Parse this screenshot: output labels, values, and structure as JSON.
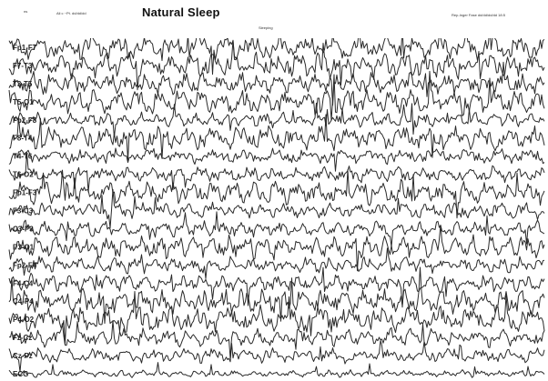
{
  "header": {
    "corner_label": "ns",
    "patient_info": "Ali c ~Pt. dd/dd/dd",
    "title": "Natural Sleep",
    "subtitle": "Sleeping",
    "record_info": "Rep-Inger Fase dd/dd/dd/dd 18:5"
  },
  "channels": [
    {
      "label": "Fp1-F7",
      "seed": 11
    },
    {
      "label": "F7-T3",
      "seed": 23
    },
    {
      "label": "T3-T5",
      "seed": 37
    },
    {
      "label": "T5-O1",
      "seed": 41
    },
    {
      "label": "Fp2-F8",
      "seed": 53
    },
    {
      "label": "F8-T4",
      "seed": 67
    },
    {
      "label": "T4-T6",
      "seed": 71
    },
    {
      "label": "T6-O2",
      "seed": 83
    },
    {
      "label": "Fp1-F3",
      "seed": 97
    },
    {
      "label": "F3-C3",
      "seed": 101
    },
    {
      "label": "C3-P3",
      "seed": 113
    },
    {
      "label": "P3-O1",
      "seed": 127
    },
    {
      "label": "Fp2-F4",
      "seed": 131
    },
    {
      "label": "F4-C4",
      "seed": 149
    },
    {
      "label": "C4-P4",
      "seed": 151
    },
    {
      "label": "P4-O2",
      "seed": 163
    },
    {
      "label": "Fz-Cz",
      "seed": 173
    },
    {
      "label": "Cz-Pz",
      "seed": 181
    },
    {
      "label": "ECG",
      "seed": 191
    }
  ],
  "colors": {
    "trace": "#2a2a2a",
    "background": "#ffffff"
  }
}
